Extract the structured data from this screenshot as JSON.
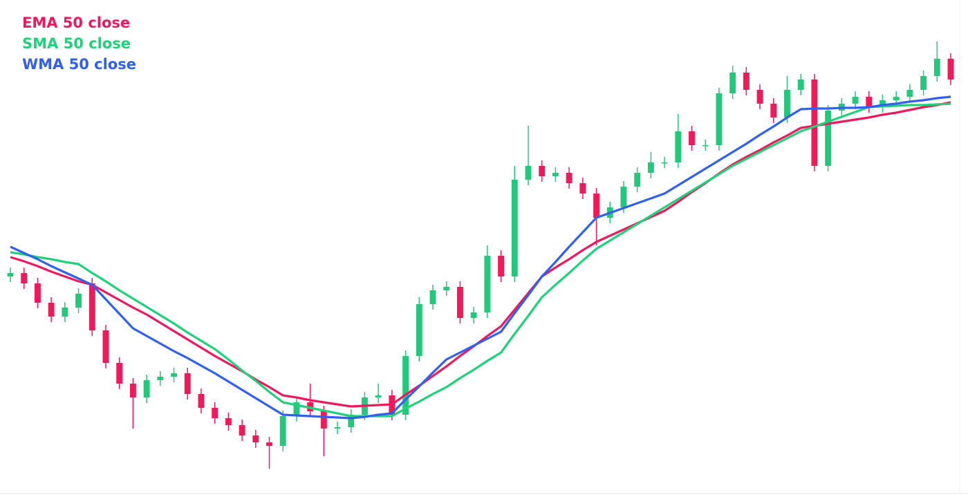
{
  "chart_data": {
    "type": "candlestick",
    "candles": {
      "open": [
        300,
        305,
        290,
        262,
        242,
        255,
        290,
        222,
        175,
        145,
        125,
        150,
        155,
        160,
        130,
        110,
        95,
        85,
        70,
        60,
        55,
        98,
        118,
        105,
        80,
        82,
        100,
        125,
        128,
        100,
        185,
        260,
        280,
        285,
        240,
        248,
        330,
        300,
        440,
        460,
        445,
        450,
        435,
        420,
        385,
        400,
        430,
        450,
        465,
        465,
        510,
        490,
        490,
        565,
        595,
        570,
        550,
        530,
        570,
        585,
        460,
        540,
        550,
        560,
        545,
        555,
        560,
        570,
        590,
        615
      ],
      "high": [
        313,
        313,
        298,
        270,
        263,
        283,
        298,
        230,
        183,
        153,
        158,
        163,
        168,
        168,
        138,
        118,
        103,
        93,
        78,
        68,
        106,
        126,
        145,
        113,
        90,
        108,
        133,
        145,
        136,
        193,
        270,
        288,
        293,
        293,
        256,
        345,
        338,
        460,
        518,
        468,
        458,
        458,
        443,
        428,
        408,
        438,
        458,
        480,
        473,
        535,
        518,
        498,
        573,
        605,
        603,
        578,
        558,
        590,
        593,
        593,
        548,
        558,
        568,
        568,
        563,
        568,
        578,
        598,
        640,
        623
      ],
      "low": [
        292,
        282,
        254,
        234,
        234,
        247,
        214,
        167,
        137,
        80,
        117,
        142,
        147,
        122,
        102,
        87,
        77,
        62,
        52,
        22,
        47,
        90,
        97,
        40,
        72,
        74,
        92,
        117,
        92,
        92,
        177,
        252,
        272,
        232,
        232,
        240,
        292,
        292,
        432,
        437,
        437,
        427,
        412,
        345,
        377,
        392,
        422,
        442,
        457,
        457,
        482,
        482,
        482,
        557,
        562,
        542,
        522,
        522,
        562,
        452,
        452,
        532,
        542,
        537,
        537,
        547,
        552,
        562,
        582,
        577
      ],
      "close": [
        305,
        290,
        262,
        242,
        255,
        275,
        222,
        175,
        145,
        125,
        150,
        155,
        160,
        130,
        110,
        95,
        85,
        70,
        60,
        55,
        98,
        118,
        105,
        80,
        82,
        100,
        125,
        128,
        100,
        185,
        260,
        280,
        285,
        240,
        248,
        330,
        300,
        440,
        460,
        445,
        450,
        435,
        420,
        385,
        400,
        430,
        450,
        465,
        465,
        510,
        490,
        490,
        565,
        595,
        570,
        550,
        530,
        570,
        585,
        460,
        540,
        550,
        560,
        545,
        555,
        560,
        570,
        590,
        615,
        585
      ],
      "up_color": "#22c97a",
      "down_color": "#f0195a"
    },
    "series": [
      {
        "name": "EMA 50 close",
        "color": "#f0185c",
        "values": [
          328,
          322,
          315,
          307,
          300,
          293,
          288,
          277,
          266,
          255,
          245,
          233,
          221,
          209,
          197,
          185,
          174,
          163,
          151,
          140,
          128,
          125,
          121,
          118,
          115,
          112,
          113,
          114,
          115,
          129,
          142,
          156,
          170,
          185,
          199,
          214,
          228,
          252,
          276,
          300,
          313,
          325,
          338,
          350,
          359,
          368,
          377,
          386,
          395,
          408,
          422,
          435,
          449,
          462,
          473,
          483,
          494,
          504,
          515,
          518,
          521,
          524,
          527,
          530,
          534,
          537,
          541,
          545,
          548,
          552
        ]
      },
      {
        "name": "SMA 50 close",
        "color": "#1fd27a",
        "values": [
          335,
          332,
          328,
          325,
          321,
          318,
          305,
          293,
          280,
          268,
          256,
          244,
          232,
          219,
          207,
          195,
          180,
          164,
          149,
          133,
          118,
          114,
          110,
          106,
          102,
          98,
          98,
          98,
          98,
          109,
          119,
          130,
          140,
          153,
          165,
          178,
          190,
          217,
          243,
          270,
          288,
          305,
          323,
          340,
          352,
          364,
          376,
          388,
          400,
          412,
          424,
          436,
          448,
          460,
          470,
          480,
          490,
          500,
          510,
          517,
          524,
          531,
          538,
          545,
          546,
          547,
          548,
          548,
          549,
          550
        ]
      },
      {
        "name": "WMA 50 close",
        "color": "#3060f0",
        "values": [
          343,
          334,
          325,
          315,
          306,
          297,
          288,
          267,
          246,
          225,
          214,
          203,
          192,
          182,
          171,
          160,
          148,
          136,
          124,
          112,
          100,
          99,
          98,
          97,
          96,
          95,
          97,
          100,
          102,
          122,
          141,
          161,
          180,
          190,
          200,
          210,
          220,
          247,
          273,
          300,
          321,
          343,
          364,
          385,
          392,
          399,
          406,
          413,
          420,
          432,
          444,
          456,
          468,
          480,
          492,
          505,
          517,
          530,
          542,
          543,
          543,
          544,
          544,
          545,
          548,
          550,
          553,
          555,
          558,
          560
        ]
      }
    ],
    "ylim": [
      0,
      700
    ]
  }
}
